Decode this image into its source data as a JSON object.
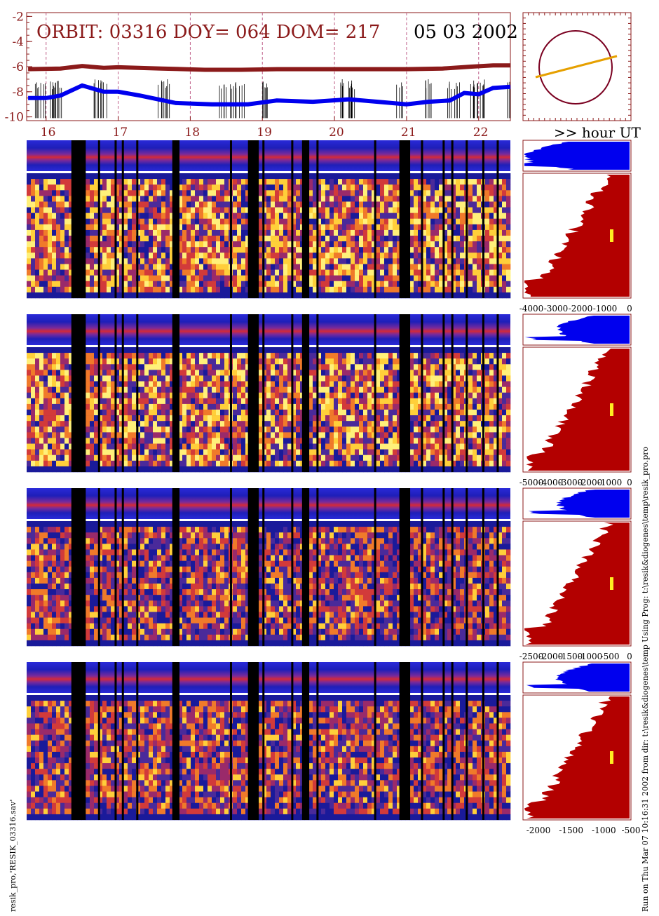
{
  "header": {
    "orbit_text": "ORBIT: 03316 DOY=  064 DOM=  217",
    "date_text": "05 03 2002",
    "hour_label": ">> hour UT"
  },
  "side_text": {
    "left": "resik_pro,'RESIK_03316.sav'",
    "right": "Run on Thu Mar 07 10:16:31 2002  from dir: t:\\resik&diogenes\\temp Using Prog: t:\\resik&diogenes\\temp\\resik_pro.pro"
  },
  "colors": {
    "maroon": "#8b1a1a",
    "blue": "#0000ee",
    "red_fill": "#b30000",
    "orange": "#e6a000",
    "yellow": "#ffee22",
    "grid_pink": "#c0608a"
  },
  "chart_data": [
    {
      "type": "line",
      "title": "ORBIT: 03316 DOY=  064 DOM=  217",
      "ylim": [
        -10.3,
        -1.7
      ],
      "yticks": [
        -2,
        -4,
        -6,
        -8,
        -10
      ],
      "xlim": [
        15.73,
        22.44
      ],
      "xticks": [
        16,
        17,
        18,
        19,
        20,
        21,
        22
      ],
      "grid": "vertical dashed at each hour",
      "series": [
        {
          "color": "#8b1a1a",
          "x": [
            15.75,
            16.2,
            16.5,
            16.8,
            17.0,
            17.6,
            18.2,
            18.7,
            19.2,
            19.8,
            20.4,
            21.0,
            21.5,
            21.9,
            22.2,
            22.44
          ],
          "values": [
            -6.2,
            -6.15,
            -5.95,
            -6.1,
            -6.05,
            -6.15,
            -6.25,
            -6.25,
            -6.2,
            -6.2,
            -6.2,
            -6.2,
            -6.15,
            -6.0,
            -5.9,
            -5.9
          ]
        },
        {
          "color": "#0000ee",
          "x": [
            15.75,
            16.0,
            16.2,
            16.5,
            16.8,
            17.0,
            17.3,
            17.8,
            18.3,
            18.8,
            19.2,
            19.7,
            20.2,
            20.6,
            21.0,
            21.3,
            21.6,
            21.8,
            22.0,
            22.2,
            22.44
          ],
          "values": [
            -8.5,
            -8.5,
            -8.3,
            -7.5,
            -8.0,
            -8.0,
            -8.3,
            -8.9,
            -9.0,
            -9.0,
            -8.7,
            -8.8,
            -8.6,
            -8.8,
            -9.0,
            -8.8,
            -8.7,
            -8.1,
            -8.2,
            -7.7,
            -7.6
          ]
        }
      ]
    },
    {
      "type": "line",
      "title": "orbit projection",
      "shapes": [
        "circle",
        "track line"
      ]
    },
    {
      "type": "heatmap",
      "title": "spectrogram panels",
      "panels": 4,
      "xlim": [
        15.73,
        22.44
      ],
      "data_gaps_hours": [
        [
          16.35,
          16.55
        ],
        [
          17.75,
          17.85
        ],
        [
          18.8,
          18.95
        ],
        [
          19.55,
          19.65
        ],
        [
          20.9,
          21.05
        ]
      ]
    },
    {
      "type": "area",
      "title": "spectra profiles",
      "panels": [
        {
          "xticks": [
            "-4000",
            "-3000",
            "-2000",
            "-1000",
            "0"
          ]
        },
        {
          "xticks": [
            "-5000",
            "-4000",
            "-3000",
            "-2000",
            "-1000",
            "0"
          ]
        },
        {
          "xticks": [
            "-2500",
            "-2000",
            "-1500",
            "-1000",
            "-500",
            "0"
          ]
        },
        {
          "xticks": [
            "-2000",
            "-1500",
            "-1000",
            "-500"
          ]
        }
      ]
    }
  ]
}
